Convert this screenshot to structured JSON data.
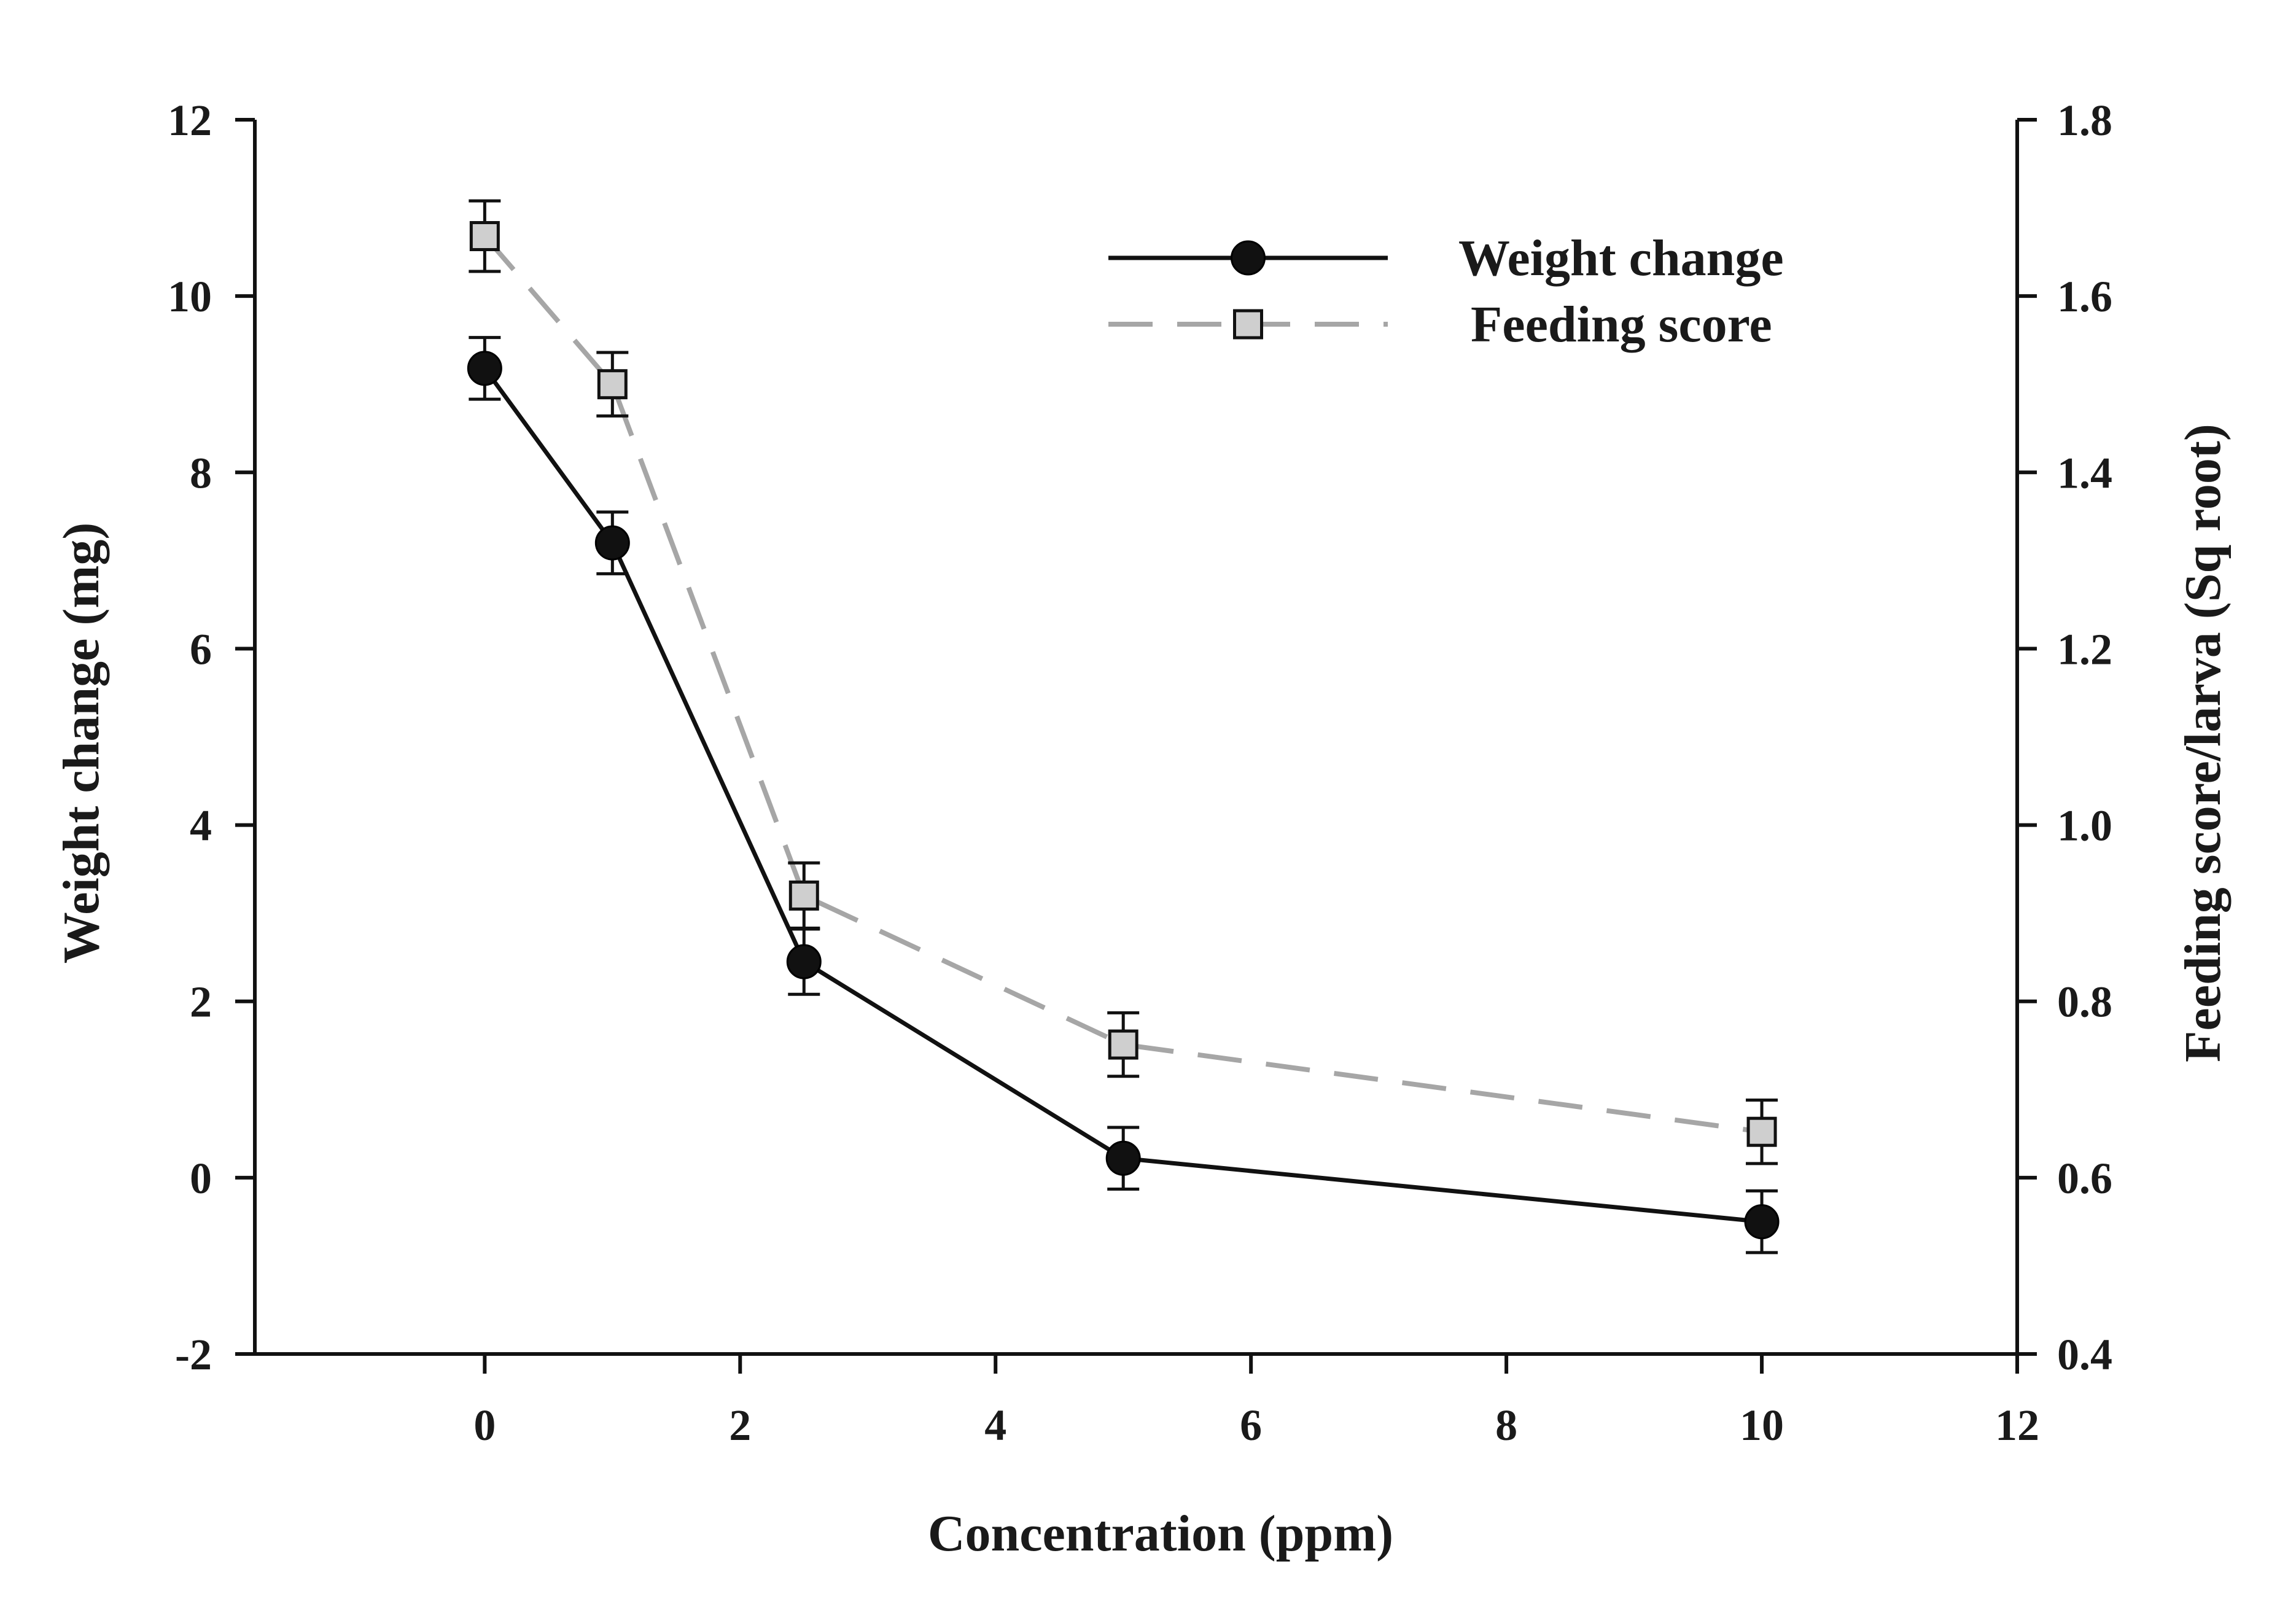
{
  "chart_data": {
    "type": "line",
    "x": [
      0,
      1,
      2.5,
      5,
      10
    ],
    "xlabel": "Concentration (ppm)",
    "xlim": [
      -1.8,
      12
    ],
    "xticks": [
      0,
      2,
      4,
      6,
      8,
      10,
      12
    ],
    "y_left": {
      "label": "Weight change (mg)",
      "lim": [
        -2,
        12
      ],
      "ticks": [
        "-2",
        "0",
        "2",
        "4",
        "6",
        "8",
        "10",
        "12"
      ]
    },
    "y_right": {
      "label": "Feeding score/larva (Sq root)",
      "lim": [
        0.4,
        1.8
      ],
      "ticks": [
        "0.4",
        "0.6",
        "0.8",
        "1.0",
        "1.2",
        "1.4",
        "1.6",
        "1.8"
      ]
    },
    "series": [
      {
        "name": "Weight change",
        "axis": "left",
        "values": [
          9.18,
          7.2,
          2.45,
          0.22,
          -0.5
        ],
        "errors": [
          0.35,
          0.35,
          0.37,
          0.35,
          0.35
        ],
        "color": "#111111",
        "line": "solid",
        "marker": "circle"
      },
      {
        "name": "Feeding score",
        "axis": "right",
        "values": [
          1.668,
          1.5,
          0.92,
          0.751,
          0.652
        ],
        "errors": [
          0.04,
          0.036,
          0.037,
          0.036,
          0.036
        ],
        "color": "#a6a6a6",
        "line": "dashed",
        "marker": "square"
      }
    ],
    "legend_position": "top-right",
    "grid": false
  }
}
